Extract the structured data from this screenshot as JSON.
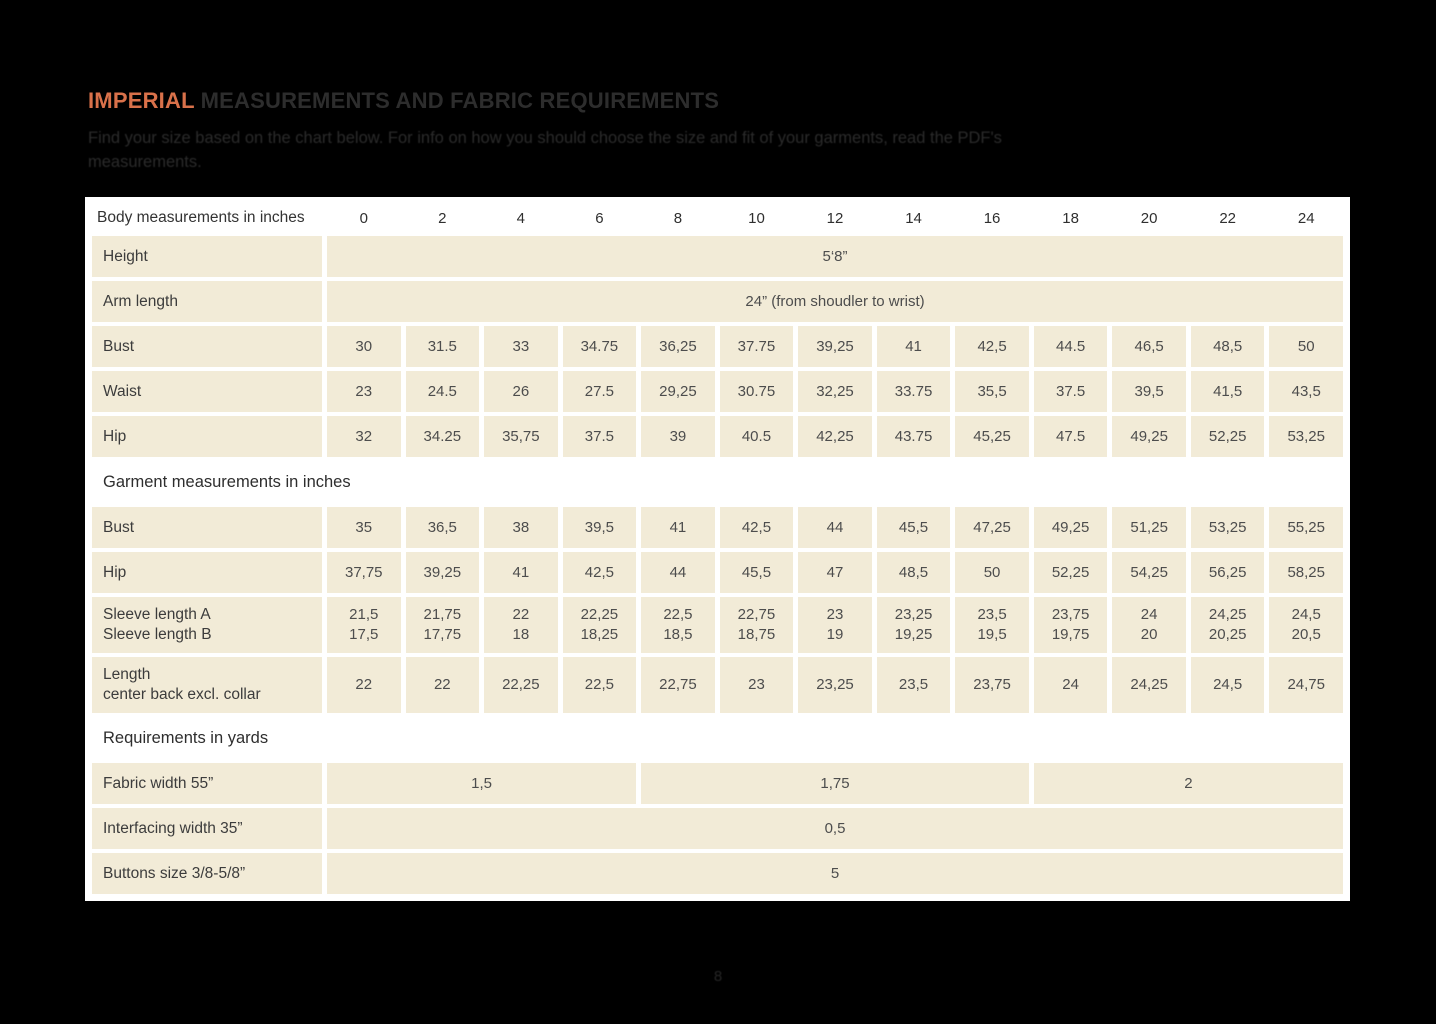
{
  "colors": {
    "accent": "#d9714a",
    "beige": "#f2ebd7",
    "ink_title": "#2d2d2d",
    "ink_sub": "#2b2b2b"
  },
  "header": {
    "title_highlight": "IMPERIAL",
    "title_rest": " MEASUREMENTS AND FABRIC REQUIREMENTS",
    "subtitle_line1": "Find your size based on the chart below. For info on how you should choose the size and fit of your garments, read the PDF's",
    "subtitle_line2": "measurements."
  },
  "footer": {
    "page_number": "8"
  },
  "table": {
    "header_label": "Body measurements in inches",
    "sizes": [
      "0",
      "2",
      "4",
      "6",
      "8",
      "10",
      "12",
      "14",
      "16",
      "18",
      "20",
      "22",
      "24"
    ],
    "rows": [
      {
        "kind": "span",
        "label": "Height",
        "value": "5‘8”"
      },
      {
        "kind": "span",
        "label": "Arm length",
        "value": "24” (from shoudler to wrist)"
      },
      {
        "kind": "values",
        "label": "Bust",
        "values": [
          "30",
          "31.5",
          "33",
          "34.75",
          "36,25",
          "37.75",
          "39,25",
          "41",
          "42,5",
          "44.5",
          "46,5",
          "48,5",
          "50"
        ]
      },
      {
        "kind": "values",
        "label": "Waist",
        "values": [
          "23",
          "24.5",
          "26",
          "27.5",
          "29,25",
          "30.75",
          "32,25",
          "33.75",
          "35,5",
          "37.5",
          "39,5",
          "41,5",
          "43,5"
        ]
      },
      {
        "kind": "values",
        "label": "Hip",
        "values": [
          "32",
          "34.25",
          "35,75",
          "37.5",
          "39",
          "40.5",
          "42,25",
          "43.75",
          "45,25",
          "47.5",
          "49,25",
          "52,25",
          "53,25"
        ]
      },
      {
        "kind": "section",
        "label": "Garment measurements in inches"
      },
      {
        "kind": "values",
        "label": "Bust",
        "values": [
          "35",
          "36,5",
          "38",
          "39,5",
          "41",
          "42,5",
          "44",
          "45,5",
          "47,25",
          "49,25",
          "51,25",
          "53,25",
          "55,25"
        ]
      },
      {
        "kind": "values",
        "label": "Hip",
        "values": [
          "37,75",
          "39,25",
          "41",
          "42,5",
          "44",
          "45,5",
          "47",
          "48,5",
          "50",
          "52,25",
          "54,25",
          "56,25",
          "58,25"
        ]
      },
      {
        "kind": "values",
        "tall": true,
        "label": "Sleeve length  A\nSleeve length B",
        "values": [
          "21,5\n17,5",
          "21,75\n17,75",
          "22\n18",
          "22,25\n18,25",
          "22,5\n18,5",
          "22,75\n18,75",
          "23\n19",
          "23,25\n19,25",
          "23,5\n19,5",
          "23,75\n19,75",
          "24\n20",
          "24,25\n20,25",
          "24,5\n20,5"
        ]
      },
      {
        "kind": "values",
        "tall": true,
        "label": "Length\ncenter back excl. collar",
        "values": [
          "22",
          "22",
          "22,25",
          "22,5",
          "22,75",
          "23",
          "23,25",
          "23,5",
          "23,75",
          "24",
          "24,25",
          "24,5",
          "24,75"
        ]
      },
      {
        "kind": "section",
        "label": "Requirements in yards"
      },
      {
        "kind": "groups",
        "label": "Fabric width 55”",
        "groups": [
          {
            "value": "1,5",
            "span": 4
          },
          {
            "value": "1,75",
            "span": 5
          },
          {
            "value": "2",
            "span": 4
          }
        ]
      },
      {
        "kind": "span",
        "label": "Interfacing width 35”",
        "value": "0,5"
      },
      {
        "kind": "span",
        "label": "Buttons size 3/8-5/8”",
        "value": "5"
      }
    ]
  }
}
